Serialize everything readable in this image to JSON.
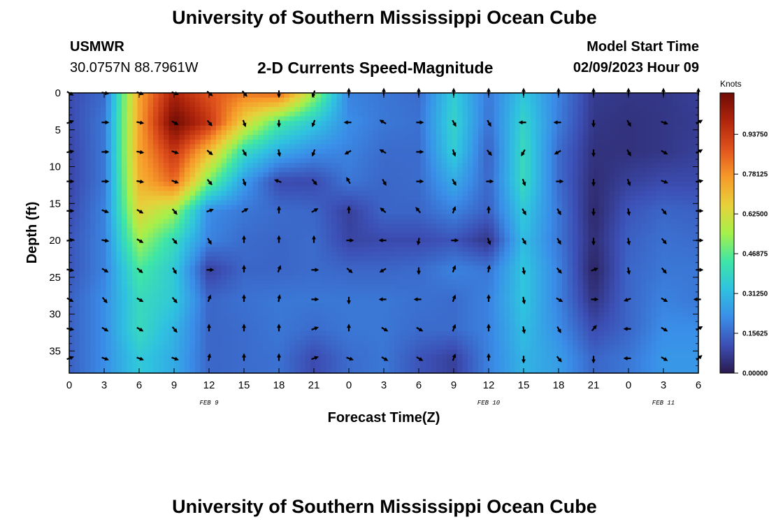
{
  "title": "University of Southern Mississippi Ocean Cube",
  "station": "USMWR",
  "coordinates": "30.0757N  88.7961W",
  "subtitle": "2-D Currents Speed-Magnitude",
  "model_start_label": "Model Start Time",
  "model_start_value": "02/09/2023 Hour 09",
  "second_title": "University of Southern Mississippi Ocean Cube",
  "chart_data": {
    "type": "heatmap",
    "xlabel": "Forecast Time(Z)",
    "ylabel": "Depth (ft)",
    "x_tick_labels": [
      "0",
      "3",
      "6",
      "9",
      "12",
      "15",
      "18",
      "21",
      "0",
      "3",
      "6",
      "9",
      "12",
      "15",
      "18",
      "21",
      "0",
      "3",
      "6"
    ],
    "y_ticks": [
      0,
      5,
      10,
      15,
      20,
      25,
      30,
      35
    ],
    "ylim": [
      0,
      38
    ],
    "xlim": [
      0,
      54
    ],
    "date_labels": [
      {
        "label": "FEB 9",
        "x": 12
      },
      {
        "label": "FEB 10",
        "x": 36
      },
      {
        "label": "FEB 11",
        "x": 51
      }
    ],
    "colorbar": {
      "title": "Knots",
      "tick_labels": [
        "0.00000",
        "0.15625",
        "0.31250",
        "0.46875",
        "0.62500",
        "0.78125",
        "0.93750"
      ],
      "range": [
        0,
        1.1
      ],
      "colors": [
        "#2a1a4e",
        "#3c4fb5",
        "#3a8ee8",
        "#2fc2e0",
        "#3fe6a6",
        "#a6f04a",
        "#e8d03a",
        "#f79a2a",
        "#e0521c",
        "#b0250c",
        "#6e0b05"
      ]
    },
    "depths": [
      0,
      4,
      8,
      12,
      16,
      20,
      24,
      28,
      32,
      36
    ],
    "times": [
      0,
      3,
      6,
      9,
      12,
      15,
      18,
      21,
      24,
      27,
      30,
      33,
      36,
      39,
      42,
      45,
      48,
      51,
      54
    ],
    "speed_grid": [
      [
        0.1,
        0.16,
        0.75,
        1.0,
        0.88,
        0.82,
        0.85,
        0.55,
        0.2,
        0.18,
        0.16,
        0.36,
        0.18,
        0.34,
        0.2,
        0.07,
        0.06,
        0.06,
        0.08
      ],
      [
        0.1,
        0.18,
        0.75,
        1.1,
        0.95,
        0.65,
        0.45,
        0.35,
        0.22,
        0.18,
        0.17,
        0.38,
        0.17,
        0.38,
        0.19,
        0.06,
        0.05,
        0.06,
        0.07
      ],
      [
        0.09,
        0.18,
        0.75,
        0.95,
        0.7,
        0.4,
        0.28,
        0.22,
        0.2,
        0.16,
        0.16,
        0.36,
        0.14,
        0.4,
        0.16,
        0.05,
        0.05,
        0.06,
        0.08
      ],
      [
        0.09,
        0.18,
        0.72,
        0.85,
        0.5,
        0.25,
        0.1,
        0.1,
        0.18,
        0.15,
        0.16,
        0.28,
        0.15,
        0.4,
        0.16,
        0.04,
        0.08,
        0.1,
        0.1
      ],
      [
        0.1,
        0.2,
        0.65,
        0.55,
        0.22,
        0.18,
        0.16,
        0.15,
        0.08,
        0.15,
        0.15,
        0.2,
        0.14,
        0.35,
        0.18,
        0.03,
        0.12,
        0.15,
        0.14
      ],
      [
        0.12,
        0.2,
        0.55,
        0.4,
        0.2,
        0.16,
        0.15,
        0.16,
        0.09,
        0.1,
        0.1,
        0.12,
        0.06,
        0.32,
        0.18,
        0.04,
        0.14,
        0.17,
        0.16
      ],
      [
        0.12,
        0.2,
        0.45,
        0.35,
        0.08,
        0.15,
        0.15,
        0.16,
        0.15,
        0.15,
        0.16,
        0.2,
        0.18,
        0.34,
        0.2,
        0.02,
        0.15,
        0.18,
        0.18
      ],
      [
        0.14,
        0.22,
        0.4,
        0.35,
        0.15,
        0.17,
        0.18,
        0.18,
        0.18,
        0.18,
        0.17,
        0.16,
        0.2,
        0.34,
        0.2,
        0.05,
        0.15,
        0.2,
        0.18
      ],
      [
        0.14,
        0.22,
        0.4,
        0.3,
        0.15,
        0.16,
        0.18,
        0.16,
        0.18,
        0.18,
        0.16,
        0.16,
        0.2,
        0.32,
        0.22,
        0.1,
        0.15,
        0.22,
        0.22
      ],
      [
        0.14,
        0.22,
        0.35,
        0.28,
        0.15,
        0.16,
        0.17,
        0.1,
        0.16,
        0.18,
        0.12,
        0.08,
        0.2,
        0.3,
        0.25,
        0.15,
        0.18,
        0.24,
        0.24
      ]
    ],
    "direction_grid": [
      [
        120,
        100,
        110,
        110,
        130,
        140,
        180,
        200,
        0,
        0,
        0,
        0,
        0,
        0,
        0,
        0,
        0,
        0,
        0
      ],
      [
        70,
        90,
        100,
        120,
        140,
        160,
        180,
        200,
        270,
        300,
        90,
        150,
        150,
        270,
        270,
        180,
        150,
        110,
        60
      ],
      [
        80,
        90,
        100,
        110,
        130,
        150,
        170,
        200,
        240,
        300,
        90,
        160,
        140,
        210,
        240,
        180,
        150,
        120,
        60
      ],
      [
        90,
        90,
        100,
        110,
        140,
        160,
        290,
        140,
        330,
        150,
        90,
        150,
        90,
        160,
        90,
        180,
        160,
        110,
        80
      ],
      [
        90,
        110,
        120,
        140,
        70,
        60,
        0,
        60,
        0,
        310,
        320,
        20,
        0,
        150,
        150,
        180,
        170,
        140,
        90
      ],
      [
        80,
        100,
        120,
        140,
        150,
        0,
        0,
        0,
        90,
        270,
        190,
        90,
        160,
        150,
        150,
        180,
        170,
        140,
        90
      ],
      [
        100,
        120,
        130,
        150,
        90,
        0,
        20,
        90,
        130,
        240,
        180,
        20,
        10,
        170,
        140,
        70,
        170,
        140,
        90
      ],
      [
        120,
        140,
        120,
        140,
        20,
        0,
        10,
        90,
        180,
        270,
        270,
        20,
        0,
        170,
        120,
        90,
        250,
        120,
        270
      ],
      [
        100,
        120,
        120,
        140,
        0,
        0,
        0,
        70,
        0,
        120,
        120,
        20,
        0,
        170,
        150,
        40,
        270,
        120,
        60
      ],
      [
        70,
        110,
        110,
        110,
        10,
        0,
        0,
        70,
        110,
        120,
        120,
        20,
        0,
        180,
        140,
        180,
        270,
        120,
        50
      ]
    ]
  }
}
